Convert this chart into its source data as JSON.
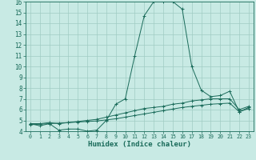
{
  "xlabel": "Humidex (Indice chaleur)",
  "xlim": [
    -0.5,
    23.5
  ],
  "ylim": [
    4,
    16
  ],
  "yticks": [
    4,
    5,
    6,
    7,
    8,
    9,
    10,
    11,
    12,
    13,
    14,
    15,
    16
  ],
  "xticks": [
    0,
    1,
    2,
    3,
    4,
    5,
    6,
    7,
    8,
    9,
    10,
    11,
    12,
    13,
    14,
    15,
    16,
    17,
    18,
    19,
    20,
    21,
    22,
    23
  ],
  "background_color": "#c8eae4",
  "grid_color": "#a0ccc4",
  "line_color": "#1a6b5a",
  "curve1_x": [
    0,
    1,
    2,
    3,
    4,
    5,
    6,
    7,
    8,
    9,
    10,
    11,
    12,
    13,
    14,
    15,
    16,
    17,
    18,
    19,
    20,
    21,
    22,
    23
  ],
  "curve1_y": [
    4.7,
    4.5,
    4.7,
    4.1,
    4.2,
    4.2,
    4.0,
    4.1,
    5.0,
    6.5,
    7.0,
    11.0,
    14.7,
    16.0,
    16.0,
    16.0,
    15.3,
    10.0,
    7.8,
    7.2,
    7.3,
    7.7,
    5.8,
    6.2
  ],
  "curve2_x": [
    0,
    1,
    2,
    3,
    4,
    5,
    6,
    7,
    8,
    9,
    10,
    11,
    12,
    13,
    14,
    15,
    16,
    17,
    18,
    19,
    20,
    21,
    22,
    23
  ],
  "curve2_y": [
    4.7,
    4.7,
    4.8,
    4.7,
    4.8,
    4.9,
    5.0,
    5.1,
    5.3,
    5.5,
    5.7,
    5.9,
    6.1,
    6.2,
    6.3,
    6.5,
    6.6,
    6.8,
    6.9,
    7.0,
    7.0,
    7.0,
    6.0,
    6.3
  ],
  "curve3_x": [
    0,
    1,
    2,
    3,
    4,
    5,
    6,
    7,
    8,
    9,
    10,
    11,
    12,
    13,
    14,
    15,
    16,
    17,
    18,
    19,
    20,
    21,
    22,
    23
  ],
  "curve3_y": [
    4.6,
    4.65,
    4.7,
    4.75,
    4.8,
    4.85,
    4.9,
    4.95,
    5.05,
    5.15,
    5.3,
    5.45,
    5.6,
    5.75,
    5.9,
    6.05,
    6.2,
    6.3,
    6.4,
    6.5,
    6.55,
    6.6,
    5.8,
    6.1
  ],
  "xlabel_fontsize": 6.5,
  "tick_fontsize_x": 4.8,
  "tick_fontsize_y": 5.5
}
